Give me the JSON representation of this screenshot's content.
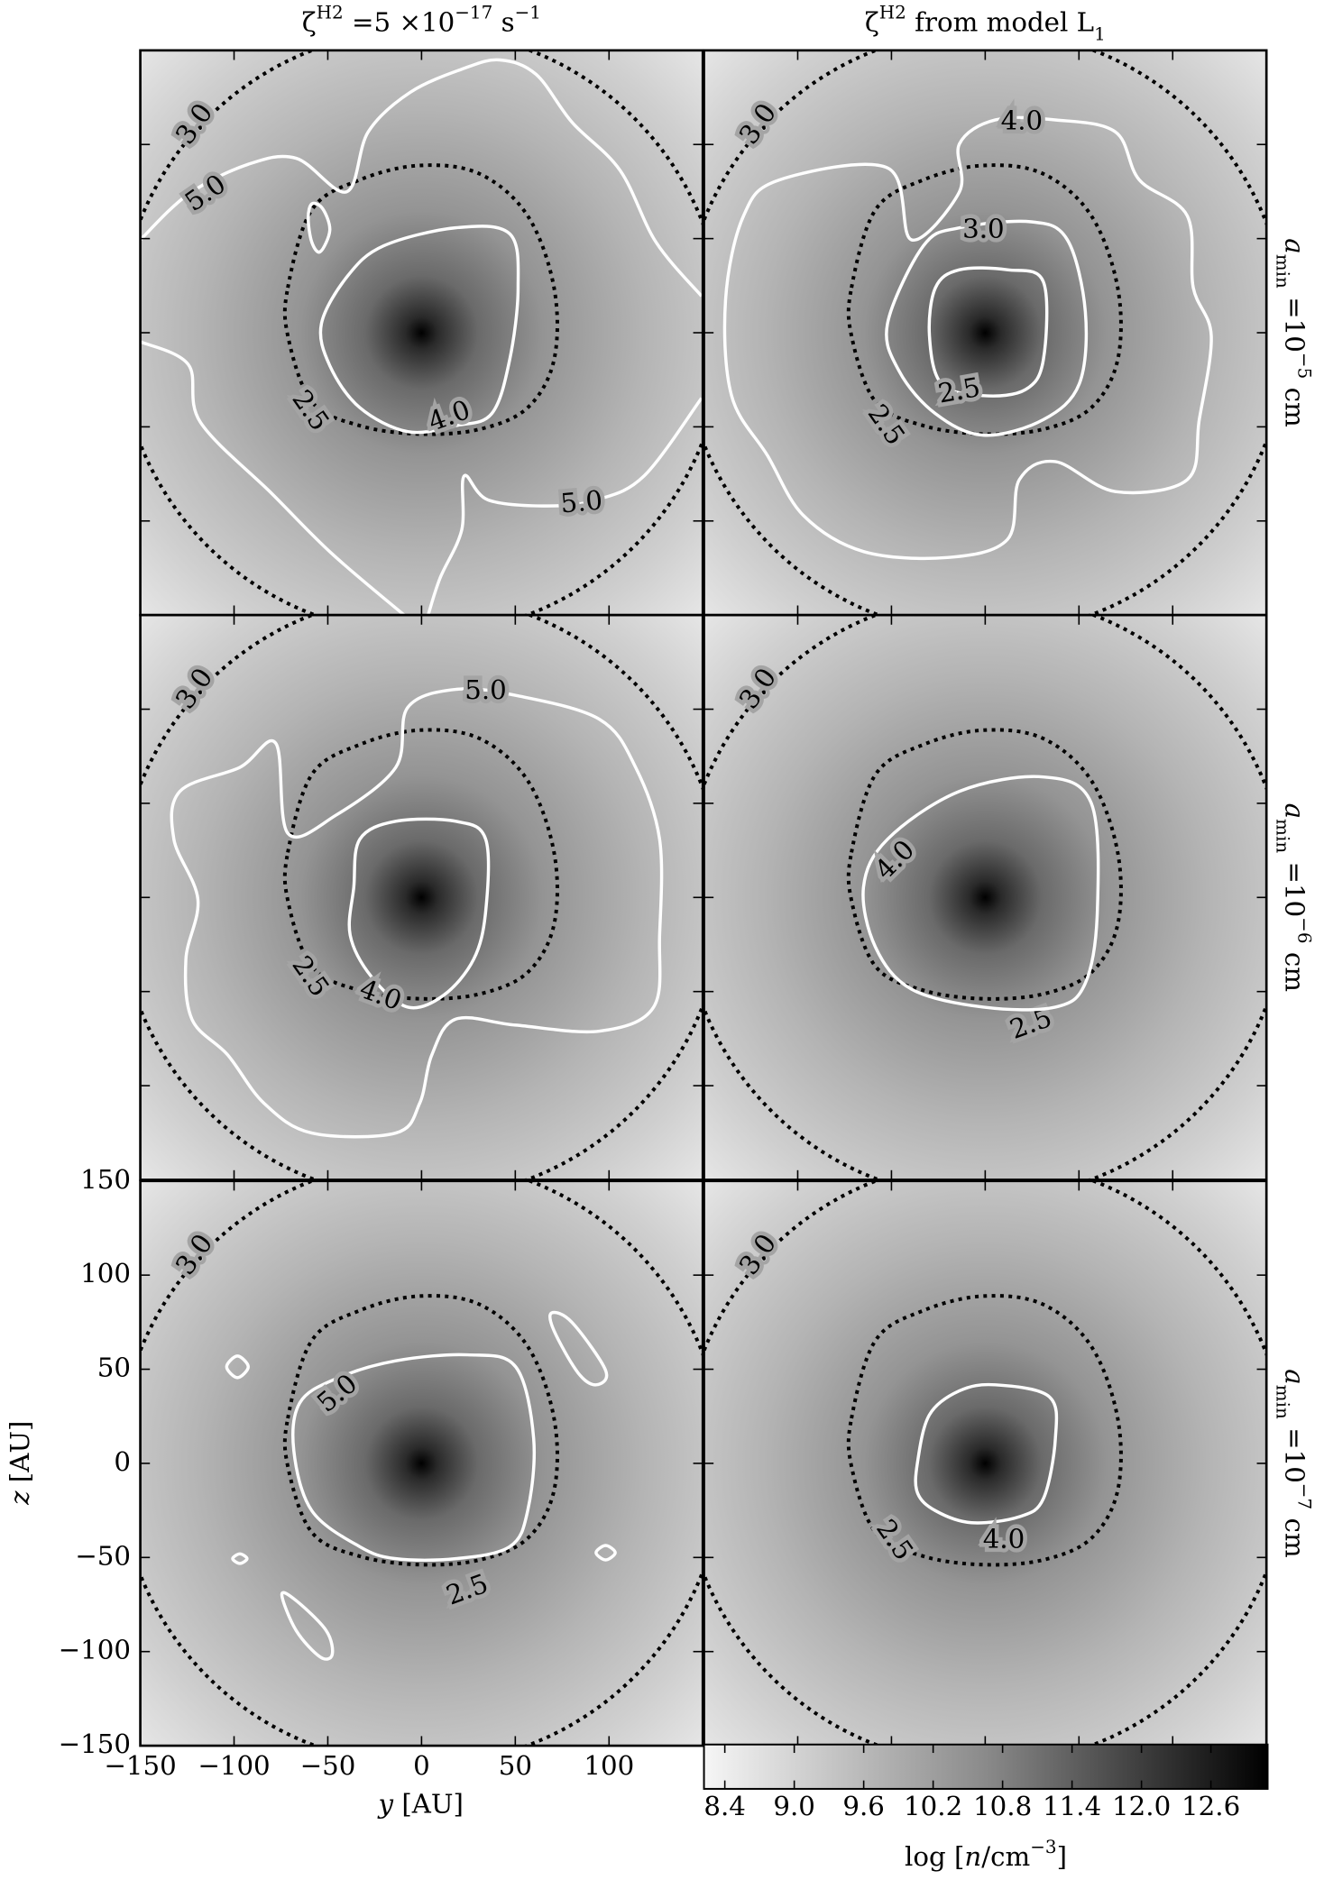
{
  "chart_data": {
    "type": "heatmap",
    "column_titles": [
      [
        "ζ",
        "H2",
        " =5 ×10",
        "−17",
        " s",
        "−1"
      ],
      [
        "ζ",
        "H2",
        "  from model L",
        "1"
      ]
    ],
    "row_labels": [
      [
        "a",
        "min",
        " =10",
        "−5",
        " cm"
      ],
      [
        "a",
        "min",
        " =10",
        "−6",
        " cm"
      ],
      [
        "a",
        "min",
        " =10",
        "−7",
        " cm"
      ]
    ],
    "xlabel": [
      "y",
      " [AU]"
    ],
    "ylabel": [
      "z",
      " [AU]"
    ],
    "xlim": [
      -150,
      150
    ],
    "ylim": [
      -150,
      150
    ],
    "xticks": [
      {
        "value": -150,
        "label": "−150"
      },
      {
        "value": -100,
        "label": "−100"
      },
      {
        "value": -50,
        "label": "−50"
      },
      0,
      50,
      100
    ],
    "yticks": [
      {
        "value": -150,
        "label": "−150"
      },
      {
        "value": -100,
        "label": "−100"
      },
      {
        "value": -50,
        "label": "−50"
      },
      0,
      50,
      100,
      150
    ],
    "colorbar": {
      "label": [
        "log [",
        "n",
        "/cm",
        "−3",
        "]"
      ],
      "lim": [
        8.22,
        13.09
      ],
      "ticks": [
        8.4,
        {
          "value": 9.0,
          "label": "9.0"
        },
        9.6,
        10.2,
        10.8,
        11.4,
        {
          "value": 12.0,
          "label": "12.0"
        },
        12.6
      ]
    },
    "panels": [
      {
        "contours": [
          {
            "value": 3.0,
            "label": "3.0",
            "color": "black",
            "linestyle": "dotted"
          },
          {
            "value": 2.5,
            "label": "2.5",
            "color": "black",
            "linestyle": "dotted"
          },
          {
            "value": 4.0,
            "label": "4.0",
            "color": "white",
            "linestyle": "solid"
          },
          {
            "value": 5.0,
            "label": "5.0",
            "color": "white",
            "linestyle": "solid"
          }
        ]
      },
      {
        "contours": [
          {
            "value": 3.0,
            "label": "3.0",
            "color": "black",
            "linestyle": "dotted"
          },
          {
            "value": 2.5,
            "label": "2.5",
            "color": "black",
            "linestyle": "dotted"
          },
          {
            "value": 2.5,
            "label": "2.5",
            "color": "white",
            "linestyle": "solid"
          },
          {
            "value": 3.0,
            "label": "3.0",
            "color": "white",
            "linestyle": "solid"
          },
          {
            "value": 4.0,
            "label": "4.0",
            "color": "white",
            "linestyle": "solid"
          }
        ]
      },
      {
        "contours": [
          {
            "value": 3.0,
            "label": "3.0",
            "color": "black",
            "linestyle": "dotted"
          },
          {
            "value": 2.5,
            "label": "2.5",
            "color": "black",
            "linestyle": "dotted"
          },
          {
            "value": 4.0,
            "label": "4.0",
            "color": "white",
            "linestyle": "solid"
          },
          {
            "value": 5.0,
            "label": "5.0",
            "color": "white",
            "linestyle": "solid"
          }
        ]
      },
      {
        "contours": [
          {
            "value": 3.0,
            "label": "3.0",
            "color": "black",
            "linestyle": "dotted"
          },
          {
            "value": 2.5,
            "label": "2.5",
            "color": "black",
            "linestyle": "dotted"
          },
          {
            "value": 4.0,
            "label": "4.0",
            "color": "white",
            "linestyle": "solid"
          }
        ]
      },
      {
        "contours": [
          {
            "value": 3.0,
            "label": "3.0",
            "color": "black",
            "linestyle": "dotted"
          },
          {
            "value": 2.5,
            "label": "2.5",
            "color": "black",
            "linestyle": "dotted"
          },
          {
            "value": 5.0,
            "label": "5.0",
            "color": "white",
            "linestyle": "solid"
          }
        ]
      },
      {
        "contours": [
          {
            "value": 3.0,
            "label": "3.0",
            "color": "black",
            "linestyle": "dotted"
          },
          {
            "value": 2.5,
            "label": "2.5",
            "color": "black",
            "linestyle": "dotted"
          },
          {
            "value": 4.0,
            "label": "4.0",
            "color": "white",
            "linestyle": "solid"
          }
        ]
      }
    ]
  }
}
